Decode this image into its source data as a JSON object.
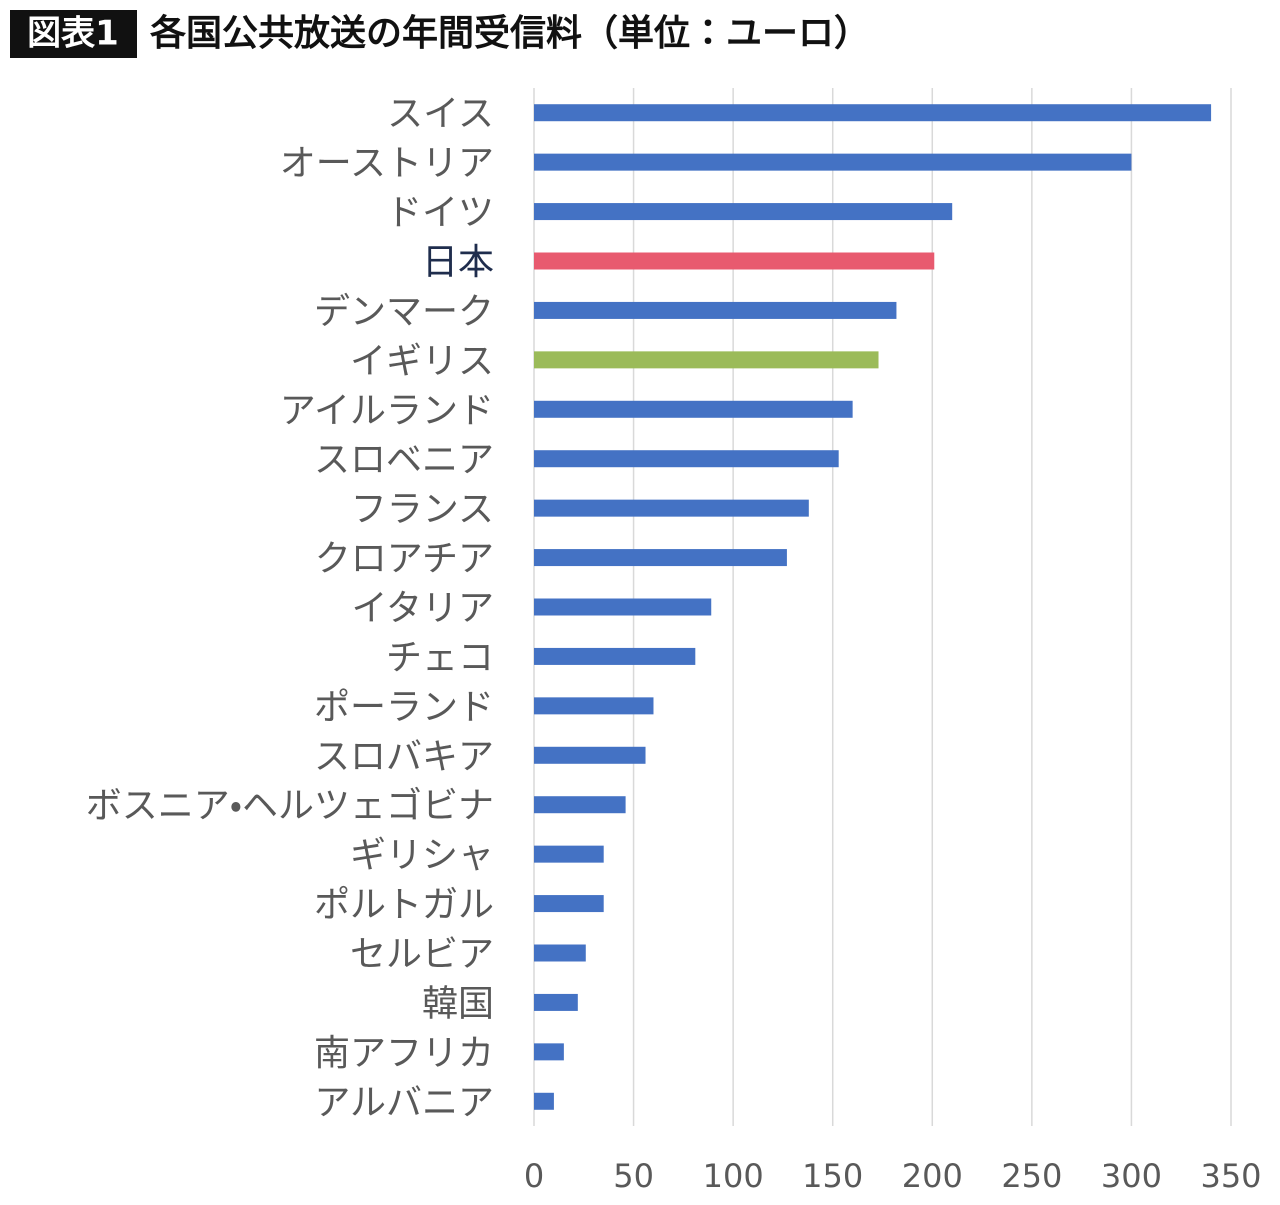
{
  "chart_data": {
    "type": "hbar",
    "figure_label": "図表1",
    "title": "各国公共放送の年間受信料（単位：ユーロ）",
    "categories": [
      "スイス",
      "オーストリア",
      "ドイツ",
      "日本",
      "デンマーク",
      "イギリス",
      "アイルランド",
      "スロベニア",
      "フランス",
      "クロアチア",
      "イタリア",
      "チェコ",
      "ポーランド",
      "スロバキア",
      "ボスニア・ヘルツェゴビナ",
      "ギリシャ",
      "ポルトガル",
      "セルビア",
      "韓国",
      "南アフリカ",
      "アルバニア"
    ],
    "values": [
      340,
      300,
      210,
      201,
      182,
      173,
      160,
      153,
      138,
      127,
      89,
      81,
      60,
      56,
      46,
      35,
      35,
      26,
      22,
      15,
      10
    ],
    "colors": [
      "#4472c4",
      "#4472c4",
      "#4472c4",
      "#e85a6f",
      "#4472c4",
      "#9bbb59",
      "#4472c4",
      "#4472c4",
      "#4472c4",
      "#4472c4",
      "#4472c4",
      "#4472c4",
      "#4472c4",
      "#4472c4",
      "#4472c4",
      "#4472c4",
      "#4472c4",
      "#4472c4",
      "#4472c4",
      "#4472c4",
      "#4472c4"
    ],
    "label_colors": [
      "#595959",
      "#595959",
      "#595959",
      "#1f2d4d",
      "#595959",
      "#595959",
      "#595959",
      "#595959",
      "#595959",
      "#595959",
      "#595959",
      "#595959",
      "#595959",
      "#595959",
      "#595959",
      "#595959",
      "#595959",
      "#595959",
      "#595959",
      "#595959",
      "#595959"
    ],
    "xlim": [
      0,
      350
    ],
    "xticks": [
      0,
      50,
      100,
      150,
      200,
      250,
      300,
      350
    ],
    "grid": true
  }
}
